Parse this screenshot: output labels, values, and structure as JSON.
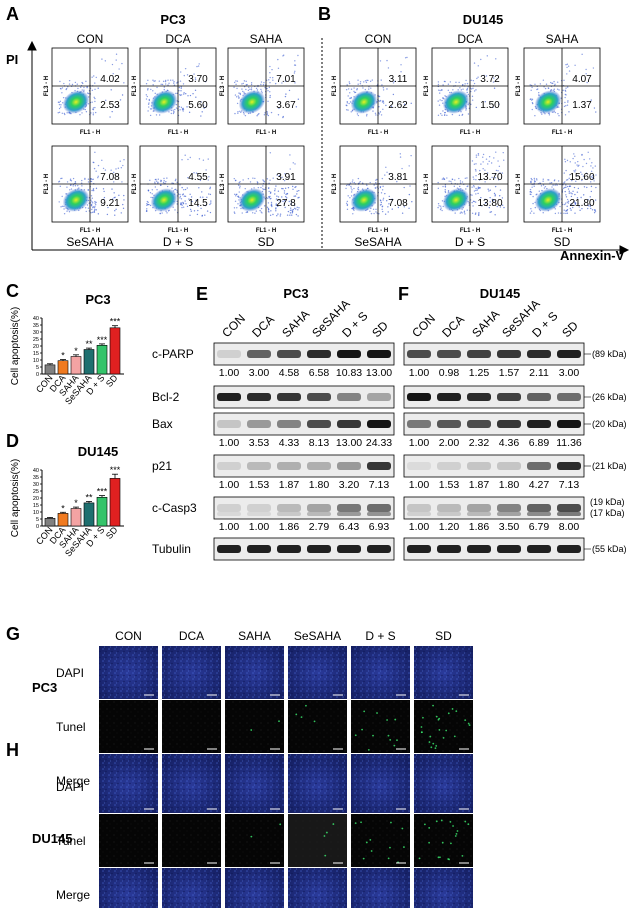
{
  "colors": {
    "flow_blue": "#3b5bd0",
    "flow_core": "#16c060",
    "bar_con": "#808080",
    "bar_dca": "#f07a20",
    "bar_saha": "#f4a3a3",
    "bar_sesaha": "#1f6f6f",
    "bar_ds": "#34c46a",
    "bar_sd": "#e02020",
    "micro_blue": "#1c2a7a",
    "micro_dark": "#0a0a0a"
  },
  "panel_letters": {
    "A": "A",
    "B": "B",
    "C": "C",
    "D": "D",
    "E": "E",
    "F": "F",
    "G": "G",
    "H": "H"
  },
  "flow": {
    "axis_y": "PI",
    "axis_x": "Annexin-V",
    "fl3_label": "FL3 - H",
    "fl1_label": "FL1 - H",
    "groups_top": [
      "CON",
      "DCA",
      "SAHA"
    ],
    "groups_bottom": [
      "SeSAHA",
      "D + S",
      "SD"
    ],
    "pc3": {
      "title": "PC3",
      "plots": [
        {
          "upper": "4.02",
          "lower": "2.53"
        },
        {
          "upper": "3.70",
          "lower": "5.60"
        },
        {
          "upper": "7.01",
          "lower": "3.67"
        },
        {
          "upper": "7.08",
          "lower": "9.21"
        },
        {
          "upper": "4.55",
          "lower": "14.5"
        },
        {
          "upper": "3.91",
          "lower": "27.8"
        }
      ]
    },
    "du145": {
      "title": "DU145",
      "plots": [
        {
          "upper": "3.11",
          "lower": "2.62"
        },
        {
          "upper": "3.72",
          "lower": "1.50"
        },
        {
          "upper": "4.07",
          "lower": "1.37"
        },
        {
          "upper": "3.81",
          "lower": "7.08"
        },
        {
          "upper": "13.70",
          "lower": "13.80"
        },
        {
          "upper": "15.60",
          "lower": "21.80"
        }
      ]
    }
  },
  "chart_data": [
    {
      "type": "bar",
      "title": "PC3",
      "ylabel": "Cell apoptosis(%)",
      "categories": [
        "CON",
        "DCA",
        "SAHA",
        "SeSAHA",
        "D + S",
        "SD"
      ],
      "values": [
        6.5,
        9.5,
        12.5,
        17.5,
        20.5,
        33
      ],
      "errors": [
        0.8,
        0.8,
        1.2,
        1,
        1,
        1.5
      ],
      "significance": [
        "",
        "*",
        "*",
        "**",
        "***",
        "***"
      ],
      "ylim": [
        0,
        40
      ],
      "yticks": [
        "0",
        "5",
        "10",
        "15",
        "20",
        "25",
        "30",
        "35",
        "40"
      ]
    },
    {
      "type": "bar",
      "title": "DU145",
      "ylabel": "Cell apoptosis(%)",
      "categories": [
        "CON",
        "DCA",
        "SAHA",
        "SeSAHA",
        "D + S",
        "SD"
      ],
      "values": [
        5.5,
        9,
        12.5,
        16.5,
        20.5,
        34
      ],
      "errors": [
        0.6,
        0.8,
        1,
        1,
        1.2,
        3
      ],
      "significance": [
        "",
        "*",
        "*",
        "**",
        "***",
        "***"
      ],
      "ylim": [
        0,
        40
      ],
      "yticks": [
        "0",
        "5",
        "10",
        "15",
        "20",
        "25",
        "30",
        "35",
        "40"
      ]
    }
  ],
  "western": {
    "lanes": [
      "CON",
      "DCA",
      "SAHA",
      "SeSAHA",
      "D + S",
      "SD"
    ],
    "proteins": [
      "c-PARP",
      "Bcl-2",
      "Bax",
      "p21",
      "c-Casp3",
      "Tubulin"
    ],
    "pc3": {
      "title": "PC3",
      "ratios": {
        "c-PARP": [
          "1.00",
          "3.00",
          "4.58",
          "6.58",
          "10.83",
          "13.00"
        ],
        "Bax": [
          "1.00",
          "3.53",
          "4.33",
          "8.13",
          "13.00",
          "24.33"
        ],
        "p21": [
          "1.00",
          "1.53",
          "1.87",
          "1.80",
          "3.20",
          "7.13"
        ],
        "c-Casp3": [
          "1.00",
          "1.00",
          "1.86",
          "2.79",
          "6.43",
          "6.93"
        ]
      },
      "intensity": {
        "c-PARP": [
          0.1,
          0.6,
          0.7,
          0.85,
          0.95,
          0.95
        ],
        "Bcl-2": [
          0.9,
          0.85,
          0.8,
          0.7,
          0.45,
          0.3
        ],
        "Bax": [
          0.15,
          0.35,
          0.45,
          0.7,
          0.8,
          0.95
        ],
        "p21": [
          0.1,
          0.2,
          0.25,
          0.25,
          0.35,
          0.8
        ],
        "c-Casp3": [
          0.1,
          0.1,
          0.2,
          0.3,
          0.5,
          0.55
        ],
        "Tubulin": [
          0.9,
          0.9,
          0.9,
          0.9,
          0.9,
          0.9
        ]
      }
    },
    "du145": {
      "title": "DU145",
      "ratios": {
        "c-PARP": [
          "1.00",
          "0.98",
          "1.25",
          "1.57",
          "2.11",
          "3.00"
        ],
        "Bax": [
          "1.00",
          "2.00",
          "2.32",
          "4.36",
          "6.89",
          "11.36"
        ],
        "p21": [
          "1.00",
          "1.53",
          "1.87",
          "1.80",
          "4.27",
          "7.13"
        ],
        "c-Casp3": [
          "1.00",
          "1.20",
          "1.86",
          "3.50",
          "6.79",
          "8.00"
        ]
      },
      "intensity": {
        "c-PARP": [
          0.7,
          0.7,
          0.75,
          0.8,
          0.85,
          0.9
        ],
        "Bcl-2": [
          0.95,
          0.9,
          0.85,
          0.75,
          0.6,
          0.55
        ],
        "Bax": [
          0.5,
          0.65,
          0.7,
          0.8,
          0.9,
          0.95
        ],
        "p21": [
          0.05,
          0.1,
          0.15,
          0.15,
          0.55,
          0.85
        ],
        "c-Casp3": [
          0.15,
          0.2,
          0.3,
          0.45,
          0.6,
          0.7
        ],
        "Tubulin": [
          0.9,
          0.9,
          0.9,
          0.9,
          0.9,
          0.9
        ]
      },
      "kda": {
        "c-PARP": "(89 kDa)",
        "Bcl-2": "(26 kDa)",
        "Bax": "(20 kDa)",
        "p21": "(21 kDa)",
        "c-Casp3": [
          "(19 kDa)",
          "(17 kDa)"
        ],
        "Tubulin": "(55 kDa)"
      }
    }
  },
  "micro": {
    "columns": [
      "CON",
      "DCA",
      "SAHA",
      "SeSAHA",
      "D + S",
      "SD"
    ],
    "rows": [
      "DAPI",
      "Tunel",
      "Merge"
    ],
    "pc3_label": "PC3",
    "du145_label": "DU145",
    "tunel_green": {
      "pc3": [
        0,
        0,
        0.05,
        0.1,
        0.3,
        0.6
      ],
      "du145": [
        0,
        0,
        0.05,
        0.1,
        0.3,
        0.5
      ]
    }
  }
}
